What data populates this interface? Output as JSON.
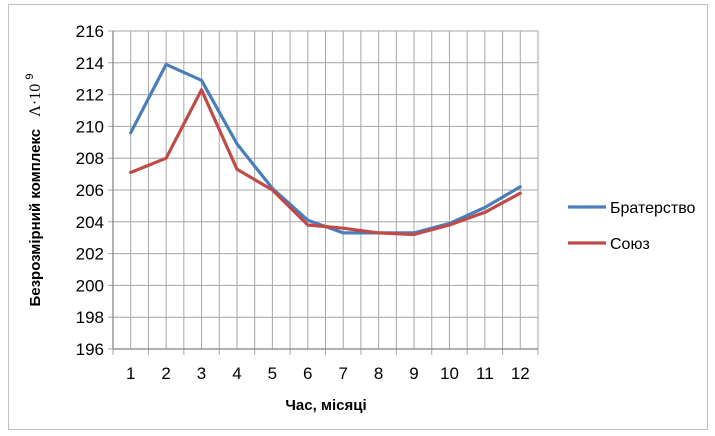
{
  "chart_data": {
    "type": "line",
    "x": [
      1,
      2,
      3,
      4,
      5,
      6,
      7,
      8,
      9,
      10,
      11,
      12
    ],
    "categories": [
      "1",
      "2",
      "3",
      "4",
      "5",
      "6",
      "7",
      "8",
      "9",
      "10",
      "11",
      "12"
    ],
    "series": [
      {
        "name": "Братерство",
        "color": "#4a7ebb",
        "values": [
          209.6,
          213.9,
          212.9,
          208.9,
          206.1,
          204.1,
          203.3,
          203.3,
          203.3,
          203.9,
          204.9,
          206.2
        ]
      },
      {
        "name": "Союз",
        "color": "#be4b48",
        "values": [
          207.1,
          208.0,
          212.3,
          207.3,
          206.0,
          203.8,
          203.6,
          203.3,
          203.2,
          203.8,
          204.6,
          205.8
        ]
      }
    ],
    "xlabel": "Час, місяці",
    "ylabel": "Безрозмірний комплекс",
    "ylabel_symbol": "Λ·10",
    "ylabel_exponent": "9",
    "ylim": [
      196,
      216
    ],
    "yticks": [
      196,
      198,
      200,
      202,
      204,
      206,
      208,
      210,
      212,
      214,
      216
    ],
    "grid": true,
    "legend_position": "right"
  }
}
